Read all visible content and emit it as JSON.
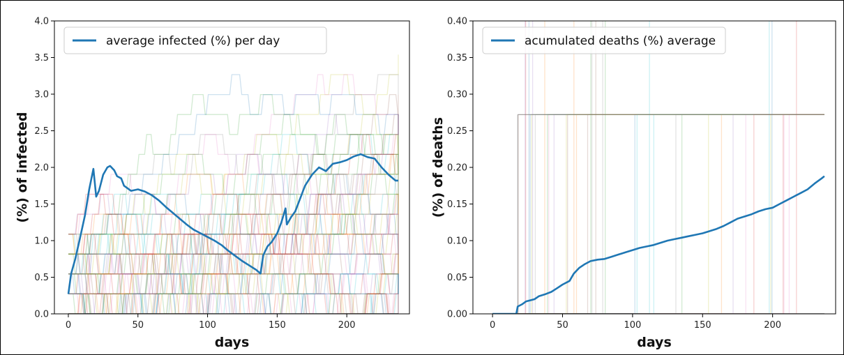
{
  "chart_data": [
    {
      "type": "line",
      "xlabel": "days",
      "ylabel": "(%) of infected",
      "xlim": [
        -10,
        245
      ],
      "ylim": [
        0,
        4.0
      ],
      "x_ticks": [
        0,
        50,
        100,
        150,
        200
      ],
      "y_ticks": [
        0.0,
        0.5,
        1.0,
        1.5,
        2.0,
        2.5,
        3.0,
        3.5,
        4.0
      ],
      "y_tick_labels": [
        "0.0",
        "0.5",
        "1.0",
        "1.5",
        "2.0",
        "2.5",
        "3.0",
        "3.5",
        "4.0"
      ],
      "grid": false,
      "legend_position": "top-left",
      "series": [
        {
          "name": "average infected (%) per day",
          "color": "#1f77b4",
          "x": [
            0,
            2,
            5,
            8,
            12,
            15,
            18,
            20,
            22,
            25,
            28,
            30,
            33,
            35,
            38,
            40,
            45,
            50,
            55,
            60,
            65,
            70,
            75,
            80,
            85,
            90,
            95,
            100,
            105,
            110,
            115,
            120,
            125,
            130,
            135,
            138,
            140,
            143,
            146,
            150,
            153,
            156,
            157,
            160,
            163,
            166,
            170,
            175,
            180,
            185,
            190,
            195,
            200,
            205,
            210,
            215,
            220,
            225,
            230,
            235,
            237
          ],
          "y": [
            0.27,
            0.55,
            0.75,
            1.0,
            1.35,
            1.7,
            1.98,
            1.6,
            1.68,
            1.9,
            2.0,
            2.02,
            1.96,
            1.88,
            1.85,
            1.75,
            1.68,
            1.7,
            1.67,
            1.62,
            1.55,
            1.46,
            1.38,
            1.3,
            1.22,
            1.15,
            1.1,
            1.05,
            1.0,
            0.94,
            0.86,
            0.79,
            0.72,
            0.66,
            0.6,
            0.55,
            0.8,
            0.92,
            0.98,
            1.1,
            1.25,
            1.44,
            1.22,
            1.32,
            1.4,
            1.55,
            1.75,
            1.9,
            2.0,
            1.95,
            2.05,
            2.07,
            2.1,
            2.15,
            2.18,
            2.14,
            2.12,
            2.0,
            1.9,
            1.82,
            1.82
          ]
        }
      ]
    },
    {
      "type": "line",
      "xlabel": "days",
      "ylabel": "(%) of deaths",
      "xlim": [
        -14,
        245
      ],
      "ylim": [
        0,
        0.4
      ],
      "x_ticks": [
        0,
        50,
        100,
        150,
        200
      ],
      "y_ticks": [
        0.0,
        0.05,
        0.1,
        0.15,
        0.2,
        0.25,
        0.3,
        0.35,
        0.4
      ],
      "y_tick_labels": [
        "0.00",
        "0.05",
        "0.10",
        "0.15",
        "0.20",
        "0.25",
        "0.30",
        "0.35",
        "0.40"
      ],
      "grid": false,
      "legend_position": "top-left",
      "series": [
        {
          "name": "acumulated deaths (%) average",
          "color": "#1f77b4",
          "x": [
            0,
            17,
            18,
            21,
            24,
            30,
            33,
            38,
            42,
            46,
            50,
            55,
            58,
            62,
            66,
            70,
            75,
            80,
            85,
            90,
            95,
            100,
            105,
            110,
            115,
            120,
            125,
            130,
            135,
            140,
            145,
            150,
            155,
            160,
            165,
            170,
            175,
            180,
            185,
            190,
            195,
            200,
            205,
            210,
            215,
            220,
            225,
            230,
            235,
            237
          ],
          "y": [
            0.0,
            0.0,
            0.01,
            0.013,
            0.017,
            0.02,
            0.024,
            0.027,
            0.03,
            0.035,
            0.04,
            0.045,
            0.055,
            0.063,
            0.068,
            0.072,
            0.074,
            0.075,
            0.078,
            0.081,
            0.084,
            0.087,
            0.09,
            0.092,
            0.094,
            0.097,
            0.1,
            0.102,
            0.104,
            0.106,
            0.108,
            0.11,
            0.113,
            0.116,
            0.12,
            0.125,
            0.13,
            0.133,
            0.136,
            0.14,
            0.143,
            0.145,
            0.15,
            0.155,
            0.16,
            0.165,
            0.17,
            0.178,
            0.185,
            0.188
          ]
        }
      ]
    }
  ]
}
